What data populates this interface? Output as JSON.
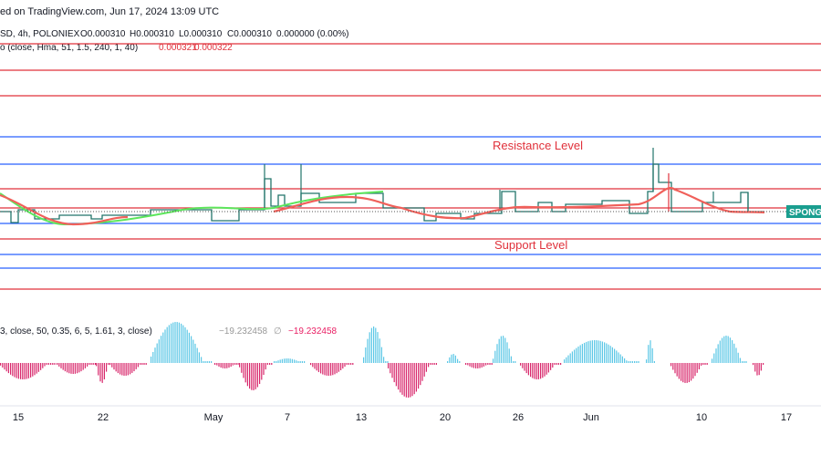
{
  "header": {
    "published": "ed on TradingView.com, Jun 17, 2024 13:09 UTC"
  },
  "legend": {
    "symbol": "SD, 4h, POLONIEX",
    "open": "O0.000310",
    "high": "H0.000310",
    "low": "L0.000310",
    "close": "C0.000310",
    "change": "0.000000 (0.00%)"
  },
  "indicator": {
    "name": "o (close, Hma, 51, 1.5, 240, 1, 40)",
    "value1": "0.000321",
    "value2": "0.000322"
  },
  "annotations": {
    "resistance": "Resistance Level",
    "support": "Support Level"
  },
  "price_tag": "SPONG",
  "oscillator": {
    "name": "3, close, 50, 0.35, 6, 5, 1.61, 3, close)",
    "value1": "−19.232458",
    "symbol": "∅",
    "value2": "−19.232458"
  },
  "x_labels": [
    "15",
    "22",
    "May",
    "7",
    "13",
    "20",
    "26",
    "Jun",
    "10",
    "17"
  ]
}
